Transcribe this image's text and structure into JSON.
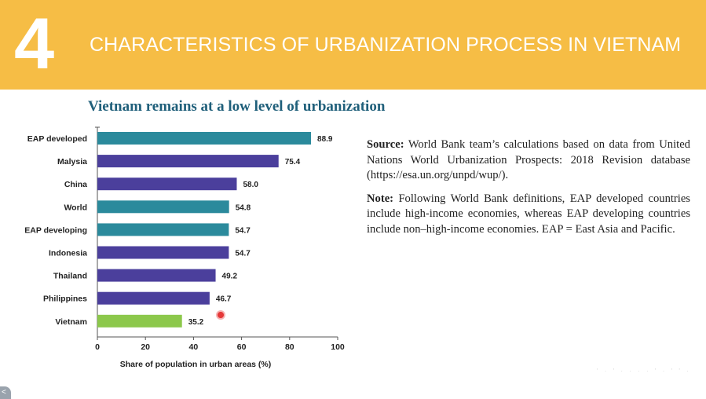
{
  "header": {
    "number": "4",
    "title": "CHARACTERISTICS OF URBANIZATION PROCESS IN VIETNAM"
  },
  "notes": {
    "source_label": "Source:",
    "source_text": "World Bank team’s calculations based on data from United Nations World Urbanization Prospects: 2018 Revision database (https://esa.un.org/unpd/wup/).",
    "note_label": "Note:",
    "note_text": "Following World Bank definitions, EAP developed countries include high-income economies, whereas EAP developing countries include non–high-income economies. EAP = East Asia and Pacific."
  },
  "footer": {
    "faint_text": "' · ' ·  ·  ·  · ' · ' ' ·",
    "corner_badge": "<"
  },
  "colors": {
    "teal": "#2b8a9c",
    "purple": "#4b3f9c",
    "green": "#8cc84b",
    "header": "#f6bd45"
  },
  "chart_data": {
    "type": "bar",
    "orientation": "horizontal",
    "title": "Vietnam remains at a low level of urbanization",
    "xlabel": "Share of population in urban areas (%)",
    "ylabel": "",
    "xlim": [
      0,
      100
    ],
    "xticks": [
      0,
      20,
      40,
      60,
      80,
      100
    ],
    "categories": [
      "EAP developed",
      "Malysia",
      "China",
      "World",
      "EAP developing",
      "Indonesia",
      "Thailand",
      "Philippines",
      "Vietnam"
    ],
    "values": [
      88.9,
      75.4,
      58.0,
      54.8,
      54.7,
      54.7,
      49.2,
      46.7,
      35.2
    ],
    "labels": [
      "88.9",
      "75.4",
      "58.0",
      "54.8",
      "54.7",
      "54.7",
      "49.2",
      "46.7",
      "35.2"
    ],
    "bar_colors": [
      "teal",
      "purple",
      "purple",
      "teal",
      "teal",
      "purple",
      "purple",
      "purple",
      "green"
    ]
  }
}
